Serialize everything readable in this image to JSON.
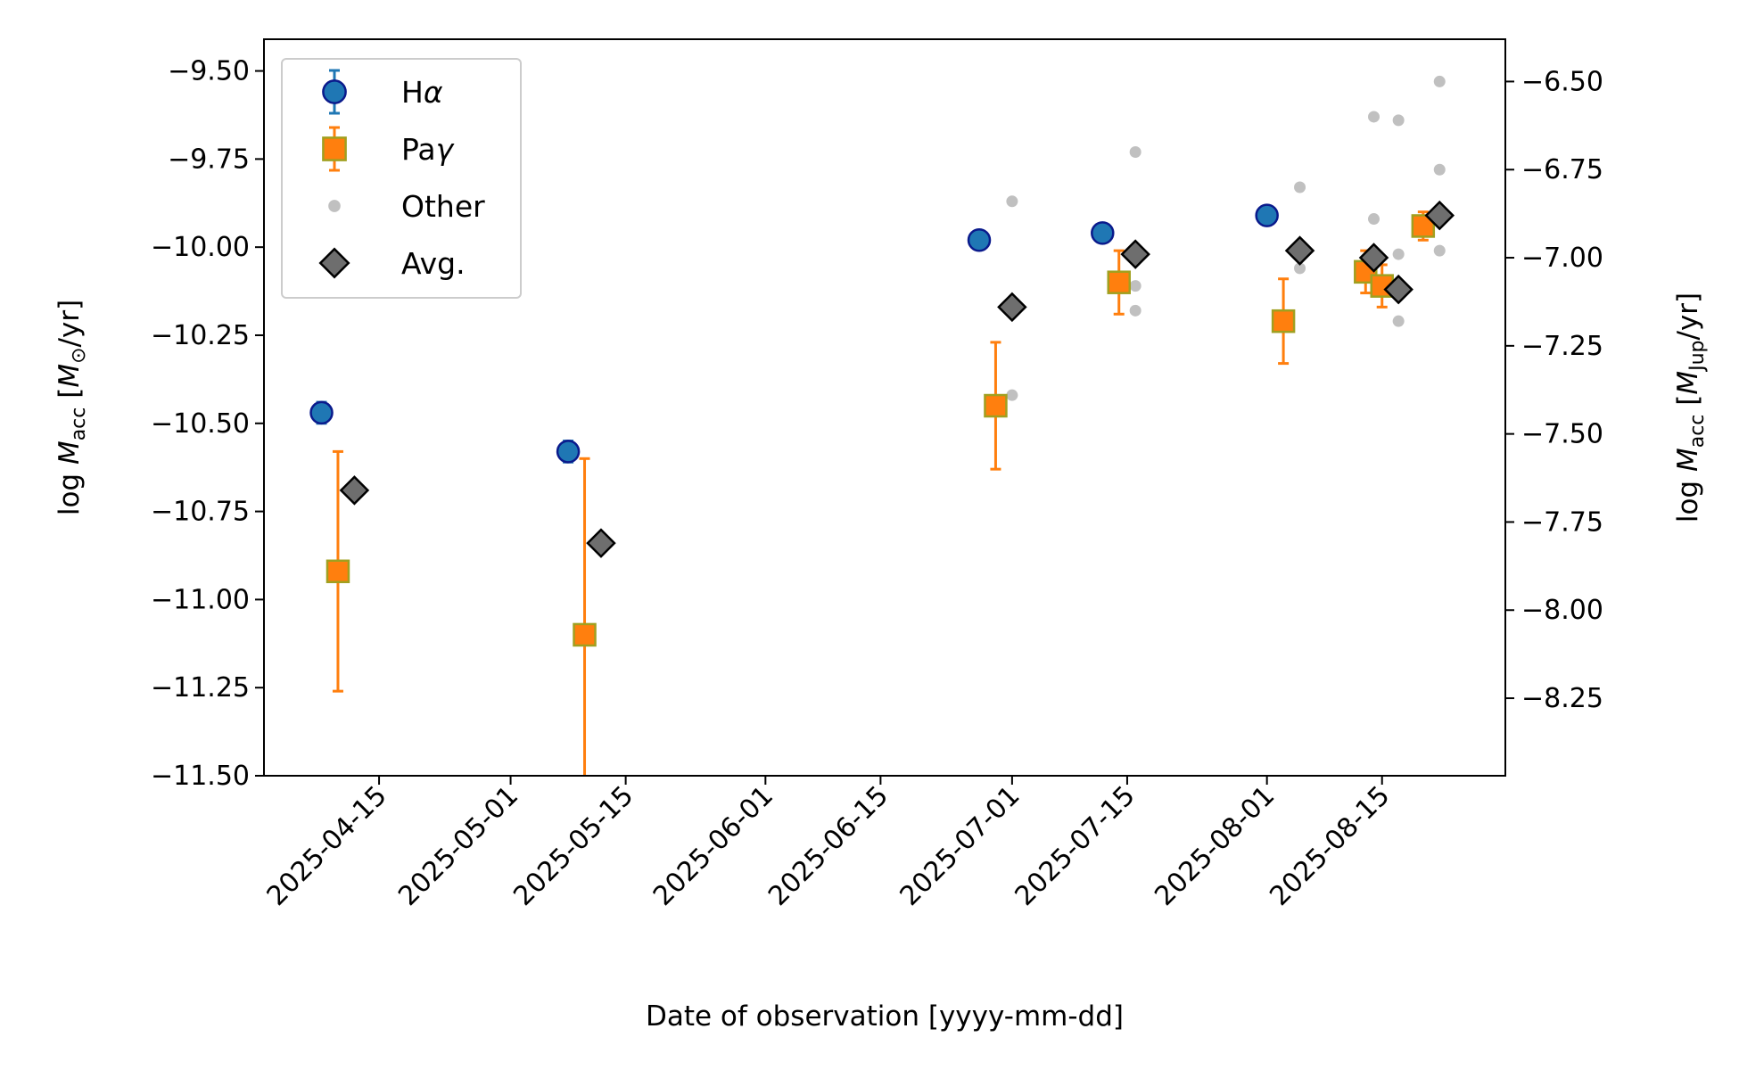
{
  "chart_data": {
    "type": "scatter",
    "title": "",
    "xlabel": "Date of observation [yyyy-mm-dd]",
    "ylabel": {
      "prefix": "log ",
      "var": "M",
      "sub": "acc",
      "unit_open": " [",
      "unit_var": "M",
      "unit_sub": "⊙",
      "unit_close": "/yr]"
    },
    "y2label": {
      "prefix": "log ",
      "var": "M",
      "sub": "acc",
      "unit_open": " [",
      "unit_var": "M",
      "unit_sub": "Jup",
      "unit_close": "/yr]"
    },
    "xlim": [
      "2025-04-01",
      "2025-08-30"
    ],
    "ylim": [
      -11.5,
      -9.41
    ],
    "y2lim": [
      -8.47,
      -6.38
    ],
    "xticks": [
      "2025-04-15",
      "2025-05-01",
      "2025-05-15",
      "2025-06-01",
      "2025-06-15",
      "2025-07-01",
      "2025-07-15",
      "2025-08-01",
      "2025-08-15"
    ],
    "yticks": [
      -9.5,
      -9.75,
      -10.0,
      -10.25,
      -10.5,
      -10.75,
      -11.0,
      -11.25,
      -11.5
    ],
    "ytick_labels": [
      "−9.50",
      "−9.75",
      "−10.00",
      "−10.25",
      "−10.50",
      "−10.75",
      "−11.00",
      "−11.25",
      "−11.50"
    ],
    "y2ticks": [
      -6.5,
      -6.75,
      -7.0,
      -7.25,
      -7.5,
      -7.75,
      -8.0,
      -8.25
    ],
    "y2tick_labels": [
      "−6.50",
      "−6.75",
      "−7.00",
      "−7.25",
      "−7.50",
      "−7.75",
      "−8.00",
      "−8.25"
    ],
    "grid": false,
    "legend_position": "top-left",
    "legend": [
      {
        "key": "halpha",
        "label": "H",
        "label_italic": "α"
      },
      {
        "key": "pagamma",
        "label": "Pa",
        "label_italic": "γ"
      },
      {
        "key": "other",
        "label": "Other",
        "label_italic": ""
      },
      {
        "key": "avg",
        "label": "Avg.",
        "label_italic": ""
      }
    ],
    "series": [
      {
        "key": "halpha",
        "marker": "circle",
        "color": "#1f77b4",
        "edge": "#0a1a8c",
        "points": [
          {
            "x": "2025-04-08",
            "y": -10.47,
            "err": 0.03
          },
          {
            "x": "2025-05-08",
            "y": -10.58,
            "err": 0.03
          },
          {
            "x": "2025-06-27",
            "y": -9.98,
            "err": 0
          },
          {
            "x": "2025-07-12",
            "y": -9.96,
            "err": 0
          },
          {
            "x": "2025-08-01",
            "y": -9.91,
            "err": 0
          }
        ]
      },
      {
        "key": "pagamma",
        "marker": "square",
        "color": "#ff7f0e",
        "edge": "#a0a020",
        "points": [
          {
            "x": "2025-04-10",
            "y": -10.92,
            "err": 0.34
          },
          {
            "x": "2025-05-10",
            "y": -11.1,
            "err": 0.5
          },
          {
            "x": "2025-06-29",
            "y": -10.45,
            "err": 0.18
          },
          {
            "x": "2025-07-14",
            "y": -10.1,
            "err": 0.09
          },
          {
            "x": "2025-08-03",
            "y": -10.21,
            "err": 0.12
          },
          {
            "x": "2025-08-13",
            "y": -10.07,
            "err": 0.06
          },
          {
            "x": "2025-08-15",
            "y": -10.11,
            "err": 0.06
          },
          {
            "x": "2025-08-20",
            "y": -9.94,
            "err": 0.04
          }
        ]
      },
      {
        "key": "other",
        "marker": "dot",
        "color": "#c0c0c0",
        "points": [
          {
            "x": "2025-07-01",
            "y": -9.87
          },
          {
            "x": "2025-07-01",
            "y": -10.42
          },
          {
            "x": "2025-07-16",
            "y": -9.73
          },
          {
            "x": "2025-07-16",
            "y": -10.11
          },
          {
            "x": "2025-07-16",
            "y": -10.18
          },
          {
            "x": "2025-08-05",
            "y": -9.83
          },
          {
            "x": "2025-08-05",
            "y": -10.06
          },
          {
            "x": "2025-08-14",
            "y": -9.63
          },
          {
            "x": "2025-08-14",
            "y": -9.92
          },
          {
            "x": "2025-08-17",
            "y": -9.64
          },
          {
            "x": "2025-08-17",
            "y": -10.02
          },
          {
            "x": "2025-08-17",
            "y": -10.21
          },
          {
            "x": "2025-08-22",
            "y": -9.53
          },
          {
            "x": "2025-08-22",
            "y": -9.78
          },
          {
            "x": "2025-08-22",
            "y": -10.01
          }
        ]
      },
      {
        "key": "avg",
        "marker": "diamond",
        "color": "#6e6e6e",
        "edge": "#000000",
        "points": [
          {
            "x": "2025-04-12",
            "y": -10.69
          },
          {
            "x": "2025-05-12",
            "y": -10.84
          },
          {
            "x": "2025-07-01",
            "y": -10.17
          },
          {
            "x": "2025-07-16",
            "y": -10.02
          },
          {
            "x": "2025-08-05",
            "y": -10.01
          },
          {
            "x": "2025-08-14",
            "y": -10.03
          },
          {
            "x": "2025-08-17",
            "y": -10.12
          },
          {
            "x": "2025-08-22",
            "y": -9.91
          }
        ]
      }
    ]
  }
}
